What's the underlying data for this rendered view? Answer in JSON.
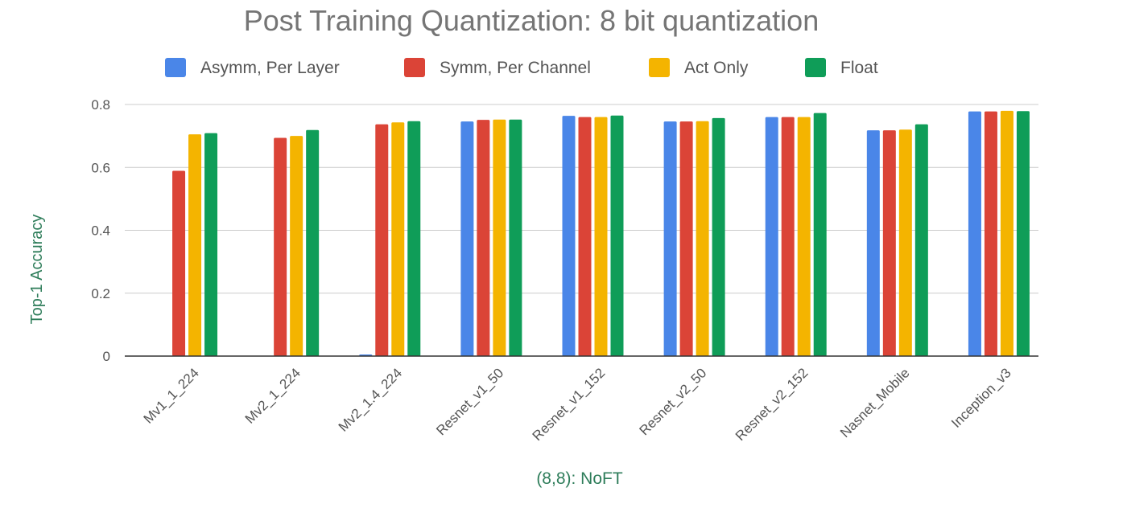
{
  "chart_data": {
    "type": "bar",
    "title": "Post Training Quantization: 8 bit quantization",
    "xlabel": "(8,8): NoFT",
    "ylabel": "Top-1 Accuracy",
    "ylim": [
      0,
      0.8
    ],
    "yticks": [
      0,
      0.2,
      0.4,
      0.6,
      0.8
    ],
    "ytick_labels": [
      "0",
      "0.2",
      "0.4",
      "0.6",
      "0.8"
    ],
    "grid": true,
    "legend_position": "top",
    "categories": [
      "Mv1_1_224",
      "Mv2_1_224",
      "Mv2_1.4_224",
      "Resnet_v1_50",
      "Resnet_v1_152",
      "Resnet_v2_50",
      "Resnet_v2_152",
      "Nasnet_Mobile",
      "Inception_v3"
    ],
    "series": [
      {
        "name": "Asymm, Per Layer",
        "color": "#4a86e8",
        "values": [
          0.0,
          0.0,
          0.005,
          0.746,
          0.764,
          0.746,
          0.76,
          0.718,
          0.778
        ]
      },
      {
        "name": "Symm, Per Channel",
        "color": "#db4437",
        "values": [
          0.589,
          0.694,
          0.737,
          0.751,
          0.76,
          0.746,
          0.76,
          0.718,
          0.778
        ]
      },
      {
        "name": "Act Only",
        "color": "#f4b400",
        "values": [
          0.705,
          0.7,
          0.743,
          0.752,
          0.76,
          0.747,
          0.76,
          0.72,
          0.78
        ]
      },
      {
        "name": "Float",
        "color": "#0f9d58",
        "values": [
          0.709,
          0.719,
          0.747,
          0.752,
          0.765,
          0.757,
          0.773,
          0.737,
          0.779
        ]
      }
    ]
  },
  "colors": {
    "title": "#757575",
    "legend_text": "#555555",
    "axis_title": "#2e7d5a",
    "tick_label": "#555555",
    "gridline": "#cccccc",
    "baseline": "#333333"
  }
}
